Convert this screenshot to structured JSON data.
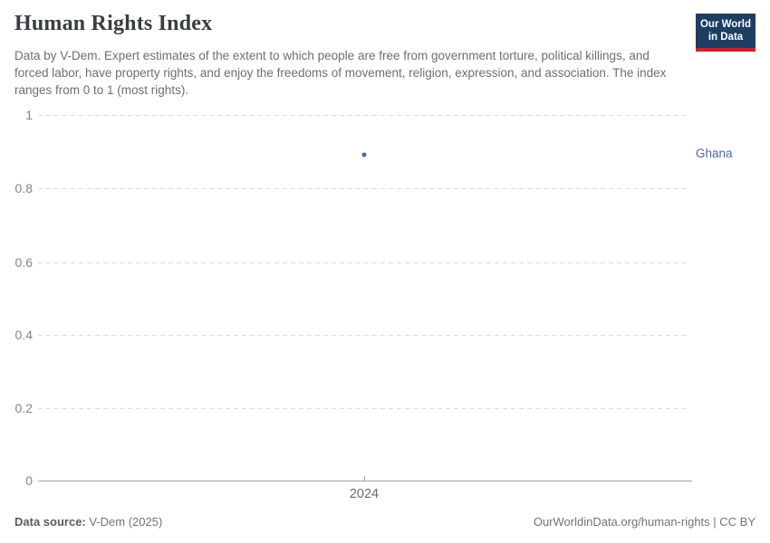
{
  "header": {
    "title": "Human Rights Index",
    "subtitle": "Data by V-Dem. Expert estimates of the extent to which people are free from government torture, political killings, and forced labor, have property rights, and enjoy the freedoms of movement, religion, expression, and association. The index ranges from 0 to 1 (most rights).",
    "logo": {
      "line1": "Our World",
      "line2": "in Data",
      "bg_color": "#1d3d63",
      "bar_color": "#c0262d"
    }
  },
  "chart_data": {
    "type": "scatter",
    "title": "Human Rights Index",
    "xlabel": "",
    "ylabel": "",
    "ylim": [
      0,
      1
    ],
    "xlim": [
      2024,
      2024
    ],
    "grid": true,
    "y_ticks": [
      "1",
      "0.8",
      "0.6",
      "0.4",
      "0.2",
      "0"
    ],
    "y_tick_values": [
      1,
      0.8,
      0.6,
      0.4,
      0.2,
      0
    ],
    "x_ticks": [
      "2024"
    ],
    "series": [
      {
        "name": "Ghana",
        "color": "#4c6a9c",
        "x": [
          2024
        ],
        "values": [
          0.89
        ]
      }
    ],
    "legend_position": "right-of-point"
  },
  "footer": {
    "source_label": "Data source:",
    "source_value": "V-Dem (2025)",
    "attribution": "OurWorldinData.org/human-rights | CC BY"
  },
  "colors": {
    "accent_series": "#4c6a9c",
    "logo_navy": "#1d3d63",
    "logo_red": "#c0262d",
    "gridline": "#dcdcdc",
    "axis": "#a5a5a5",
    "title_text": "#383d40",
    "muted_text": "#6e6e6e"
  }
}
